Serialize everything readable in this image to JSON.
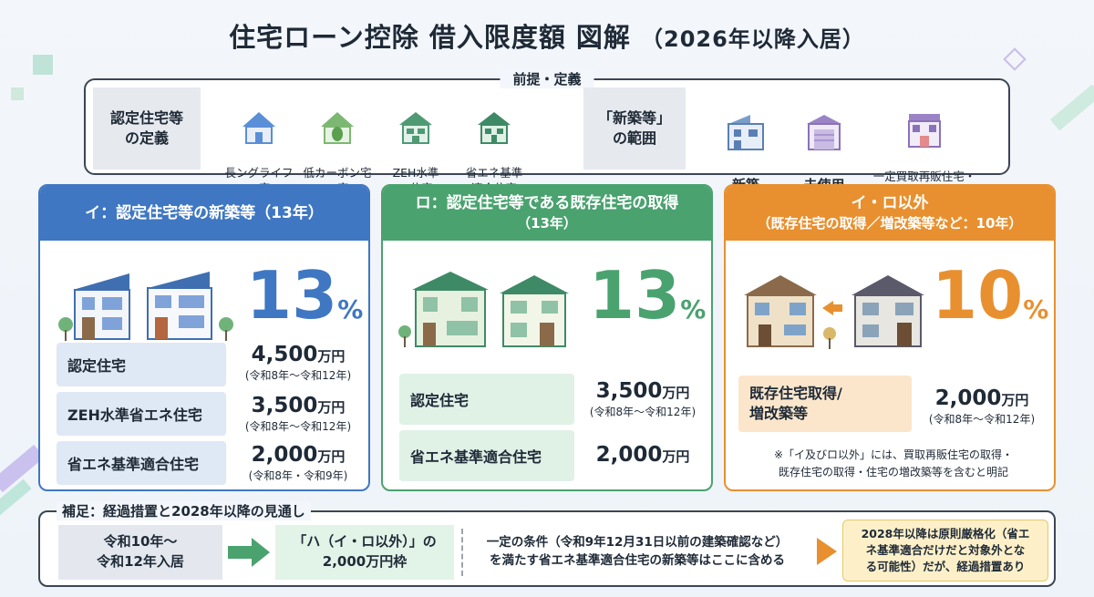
{
  "title": {
    "main": "住宅ローン控除 借入限度額 図解",
    "sub": "（2026年以降入居）"
  },
  "premise": {
    "label": "前提・定義",
    "certified_def": "認定住宅等\nの定義",
    "certified_items": [
      {
        "label": "長ングライフ\nの宅",
        "icon": "house-icon"
      },
      {
        "label": "低カーボン宅\nの宅",
        "icon": "leaf-house-icon"
      },
      {
        "label": "ZEH水準\nの住宅",
        "icon": "zeh-house-icon"
      },
      {
        "label": "省エネ基準\n適合住宅",
        "icon": "eco-house-icon"
      }
    ],
    "new_def": "「新築等」\nの範囲",
    "new_items": [
      {
        "label": "新築",
        "icon": "building-icon"
      },
      {
        "label": "未使用",
        "icon": "garage-icon"
      },
      {
        "label": "一定買取再販住宅・\n再販賣・再売物件",
        "icon": "shop-house-icon"
      }
    ]
  },
  "cards": [
    {
      "title": "イ：認定住宅等の新築等（13年）",
      "title2": "",
      "rate": "13",
      "rate_unit": "%",
      "rows": [
        {
          "label": "認定住宅",
          "amount": "4,500",
          "unit": "万円",
          "period": "(令和8年〜令和12年)"
        },
        {
          "label": "ZEH水準省エネ住宅",
          "amount": "3,500",
          "unit": "万円",
          "period": "(令和8年〜令和12年)"
        },
        {
          "label": "省エネ基準適合住宅",
          "amount": "2,000",
          "unit": "万円",
          "period": "(令和8年・令和9年)"
        }
      ]
    },
    {
      "title": "ロ：認定住宅等である既存住宅の取得",
      "title2": "（13年）",
      "rate": "13",
      "rate_unit": "%",
      "rows": [
        {
          "label": "認定住宅",
          "amount": "3,500",
          "unit": "万円",
          "period": "(令和8年〜令和12年)"
        },
        {
          "label": "省エネ基準適合住宅",
          "amount": "2,000",
          "unit": "万円",
          "period": ""
        }
      ]
    },
    {
      "title": "イ・ロ以外",
      "title2": "（既存住宅の取得／増改築等など：10年）",
      "rate": "10",
      "rate_unit": "%",
      "rows": [
        {
          "label": "既存住宅取得/\n増改築等",
          "amount": "2,000",
          "unit": "万円",
          "period": "(令和8年〜令和12年)"
        }
      ],
      "note": "※「イ及びロ以外」には、買取再販住宅の取得・\n既存住宅の取得・住宅の増改築等を含むと明記"
    }
  ],
  "supplement": {
    "label": "補足：経過措置と2028年以降の見通し",
    "period": "令和10年〜\n令和12年入居",
    "frame": "「ハ（イ・ロ以外）」の\n2,000万円枠",
    "condition": "一定の条件（令和9年12月31日以前の建築確認など）\nを満たす省エネ基準適合住宅の新築等はここに含める",
    "warning": "2028年以降は原則厳格化（省エ\nネ基準適合だけだと対象外とな\nる可能性）だが、経過措置あり"
  },
  "colors": {
    "blue": "#3f77c2",
    "green": "#4aa26f",
    "orange": "#e8902f"
  }
}
